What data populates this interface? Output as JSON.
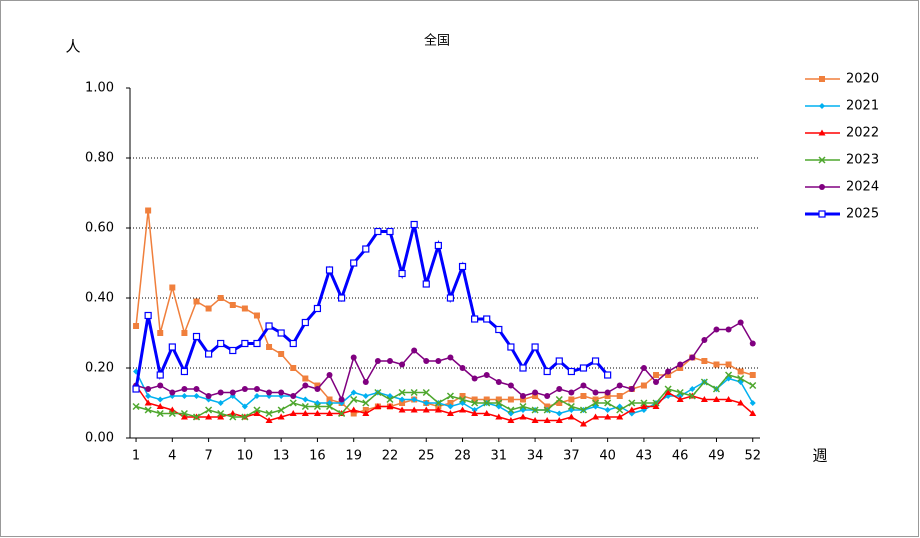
{
  "chart_data": {
    "type": "line",
    "title": "全国",
    "y_label": "人",
    "x_label": "週",
    "x": [
      1,
      2,
      3,
      4,
      5,
      6,
      7,
      8,
      9,
      10,
      11,
      12,
      13,
      14,
      15,
      16,
      17,
      18,
      19,
      20,
      21,
      22,
      23,
      24,
      25,
      26,
      27,
      28,
      29,
      30,
      31,
      32,
      33,
      34,
      35,
      36,
      37,
      38,
      39,
      40,
      41,
      42,
      43,
      44,
      45,
      46,
      47,
      48,
      49,
      50,
      51,
      52
    ],
    "xlim": [
      0.5,
      52.6
    ],
    "xticks": [
      1,
      4,
      7,
      10,
      13,
      16,
      19,
      22,
      25,
      28,
      31,
      34,
      37,
      40,
      43,
      46,
      49,
      52
    ],
    "ylim": [
      0,
      1
    ],
    "yticks": [
      {
        "value": 0,
        "label": "0.00"
      },
      {
        "value": 0.2,
        "label": "0.20"
      },
      {
        "value": 0.4,
        "label": "0.40"
      },
      {
        "value": 0.6,
        "label": "0.60"
      },
      {
        "value": 0.8,
        "label": "0.80"
      },
      {
        "value": 1,
        "label": "1.00"
      }
    ],
    "grid": true,
    "legend": "right",
    "series": [
      {
        "name": "2020",
        "color": "#f07f3c",
        "marker": "square",
        "values": [
          0.32,
          0.65,
          0.3,
          0.43,
          0.3,
          0.39,
          0.37,
          0.4,
          0.38,
          0.37,
          0.35,
          0.26,
          0.24,
          0.2,
          0.17,
          0.15,
          0.11,
          0.1,
          0.07,
          0.08,
          0.09,
          0.09,
          0.1,
          0.11,
          0.1,
          0.09,
          0.1,
          0.12,
          0.11,
          0.11,
          0.11,
          0.11,
          0.11,
          0.12,
          0.09,
          0.1,
          0.11,
          0.12,
          0.11,
          0.12,
          0.12,
          0.14,
          0.15,
          0.18,
          0.18,
          0.2,
          0.23,
          0.22,
          0.21,
          0.21,
          0.19,
          0.18
        ]
      },
      {
        "name": "2021",
        "color": "#00b0f0",
        "marker": "diamond",
        "values": [
          0.19,
          0.12,
          0.11,
          0.12,
          0.12,
          0.12,
          0.11,
          0.1,
          0.12,
          0.09,
          0.12,
          0.12,
          0.12,
          0.12,
          0.11,
          0.1,
          0.1,
          0.1,
          0.13,
          0.12,
          0.13,
          0.12,
          0.11,
          0.11,
          0.1,
          0.1,
          0.09,
          0.1,
          0.08,
          0.1,
          0.09,
          0.07,
          0.08,
          0.08,
          0.08,
          0.07,
          0.08,
          0.08,
          0.09,
          0.08,
          0.09,
          0.07,
          0.08,
          0.1,
          0.12,
          0.12,
          0.14,
          0.16,
          0.14,
          0.17,
          0.16,
          0.1
        ]
      },
      {
        "name": "2022",
        "color": "#ff0000",
        "marker": "triangle",
        "values": [
          0.15,
          0.1,
          0.09,
          0.08,
          0.06,
          0.06,
          0.06,
          0.06,
          0.07,
          0.06,
          0.07,
          0.05,
          0.06,
          0.07,
          0.07,
          0.07,
          0.07,
          0.07,
          0.08,
          0.07,
          0.09,
          0.09,
          0.08,
          0.08,
          0.08,
          0.08,
          0.07,
          0.08,
          0.07,
          0.07,
          0.06,
          0.05,
          0.06,
          0.05,
          0.05,
          0.05,
          0.06,
          0.04,
          0.06,
          0.06,
          0.06,
          0.08,
          0.09,
          0.09,
          0.13,
          0.11,
          0.12,
          0.11,
          0.11,
          0.11,
          0.1,
          0.07
        ]
      },
      {
        "name": "2023",
        "color": "#4ea72e",
        "marker": "cross",
        "values": [
          0.09,
          0.08,
          0.07,
          0.07,
          0.07,
          0.06,
          0.08,
          0.07,
          0.06,
          0.06,
          0.08,
          0.07,
          0.08,
          0.1,
          0.09,
          0.09,
          0.09,
          0.07,
          0.11,
          0.1,
          0.13,
          0.11,
          0.13,
          0.13,
          0.13,
          0.1,
          0.12,
          0.11,
          0.1,
          0.1,
          0.1,
          0.08,
          0.09,
          0.08,
          0.08,
          0.11,
          0.09,
          0.08,
          0.1,
          0.1,
          0.08,
          0.1,
          0.1,
          0.1,
          0.14,
          0.13,
          0.12,
          0.16,
          0.14,
          0.18,
          0.17,
          0.15
        ]
      },
      {
        "name": "2024",
        "color": "#800080",
        "marker": "circle",
        "values": [
          0.15,
          0.14,
          0.15,
          0.13,
          0.14,
          0.14,
          0.12,
          0.13,
          0.13,
          0.14,
          0.14,
          0.13,
          0.13,
          0.12,
          0.15,
          0.14,
          0.18,
          0.11,
          0.23,
          0.16,
          0.22,
          0.22,
          0.21,
          0.25,
          0.22,
          0.22,
          0.23,
          0.2,
          0.17,
          0.18,
          0.16,
          0.15,
          0.12,
          0.13,
          0.12,
          0.14,
          0.13,
          0.15,
          0.13,
          0.13,
          0.15,
          0.14,
          0.2,
          0.16,
          0.19,
          0.21,
          0.23,
          0.28,
          0.31,
          0.31,
          0.33,
          0.27
        ]
      },
      {
        "name": "2025",
        "color": "#0000ff",
        "marker": "open-square",
        "width": 3,
        "values": [
          0.14,
          0.35,
          0.18,
          0.26,
          0.19,
          0.29,
          0.24,
          0.27,
          0.25,
          0.27,
          0.27,
          0.32,
          0.3,
          0.27,
          0.33,
          0.37,
          0.48,
          0.4,
          0.5,
          0.54,
          0.59,
          0.59,
          0.47,
          0.61,
          0.44,
          0.55,
          0.4,
          0.49,
          0.34,
          0.34,
          0.31,
          0.26,
          0.2,
          0.26,
          0.19,
          0.22,
          0.19,
          0.2,
          0.22,
          0.18,
          null,
          null,
          null,
          null,
          null,
          null,
          null,
          null,
          null,
          null,
          null,
          null
        ]
      }
    ]
  }
}
